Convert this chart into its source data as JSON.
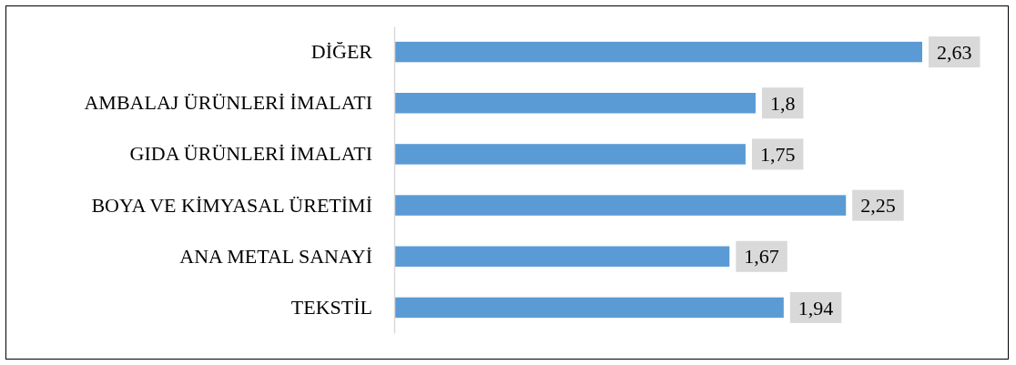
{
  "chart_data": {
    "type": "bar",
    "orientation": "horizontal",
    "categories": [
      "DİĞER",
      "AMBALAJ ÜRÜNLERİ İMALATI",
      "GIDA ÜRÜNLERİ İMALATI",
      "BOYA VE KİMYASAL ÜRETİMİ",
      "ANA METAL SANAYİ",
      "TEKSTİL"
    ],
    "values": [
      2.63,
      1.8,
      1.75,
      2.25,
      1.67,
      1.94
    ],
    "value_labels": [
      "2,63",
      "1,8",
      "1,75",
      "2,25",
      "1,67",
      "1,94"
    ],
    "color": "#5b9bd5",
    "tick_labels": "y"
  }
}
